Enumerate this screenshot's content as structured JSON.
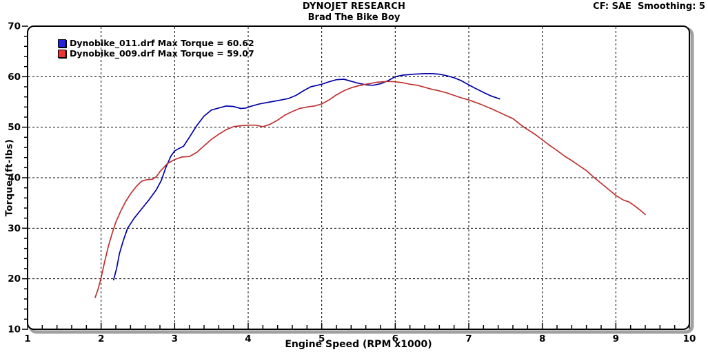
{
  "header": {
    "cf_info": "CF: SAE  Smoothing: 5"
  },
  "chart_data": {
    "type": "line",
    "title": "DYNOJET RESEARCH",
    "subtitle": "Brad The Bike Boy",
    "xlabel": "Engine Speed (RPM x1000)",
    "ylabel": "Torque (ft-lbs)",
    "xlim": [
      1,
      10
    ],
    "ylim": [
      10,
      70
    ],
    "x_major_ticks": [
      1,
      2,
      3,
      4,
      5,
      6,
      7,
      8,
      9,
      10
    ],
    "y_major_ticks": [
      10,
      20,
      30,
      40,
      50,
      60,
      70
    ],
    "x_minor_step": 0.2,
    "y_minor_step": 2,
    "grid": {
      "style": "dashed",
      "color": "#000000",
      "at": "major-ticks-inner"
    },
    "legend_position": "top-left",
    "frame": {
      "border_color": "#000000",
      "shadow_color": "#a0a0a0",
      "background": "#ffffff"
    },
    "series": [
      {
        "name": "Dynobike_011.drf",
        "legend": "Dynobike_011.drf Max Torque = 60.62",
        "max_torque": 60.62,
        "color": "#0000a8",
        "swatch_color": "#2222dd",
        "points": [
          [
            2.17,
            19.8
          ],
          [
            2.21,
            22.0
          ],
          [
            2.25,
            25.0
          ],
          [
            2.3,
            27.5
          ],
          [
            2.36,
            30.0
          ],
          [
            2.45,
            32.0
          ],
          [
            2.55,
            33.8
          ],
          [
            2.65,
            35.6
          ],
          [
            2.75,
            37.6
          ],
          [
            2.82,
            39.5
          ],
          [
            2.88,
            42.0
          ],
          [
            2.95,
            44.3
          ],
          [
            3.0,
            45.3
          ],
          [
            3.06,
            45.8
          ],
          [
            3.12,
            46.2
          ],
          [
            3.2,
            48.0
          ],
          [
            3.3,
            50.3
          ],
          [
            3.4,
            52.2
          ],
          [
            3.5,
            53.4
          ],
          [
            3.6,
            53.8
          ],
          [
            3.7,
            54.2
          ],
          [
            3.8,
            54.1
          ],
          [
            3.9,
            53.7
          ],
          [
            3.97,
            53.8
          ],
          [
            4.05,
            54.2
          ],
          [
            4.15,
            54.6
          ],
          [
            4.3,
            55.0
          ],
          [
            4.45,
            55.4
          ],
          [
            4.55,
            55.7
          ],
          [
            4.65,
            56.3
          ],
          [
            4.75,
            57.2
          ],
          [
            4.85,
            58.0
          ],
          [
            5.0,
            58.5
          ],
          [
            5.1,
            59.0
          ],
          [
            5.2,
            59.4
          ],
          [
            5.3,
            59.5
          ],
          [
            5.4,
            59.1
          ],
          [
            5.5,
            58.7
          ],
          [
            5.6,
            58.4
          ],
          [
            5.7,
            58.3
          ],
          [
            5.8,
            58.6
          ],
          [
            5.9,
            59.2
          ],
          [
            6.0,
            60.0
          ],
          [
            6.1,
            60.3
          ],
          [
            6.25,
            60.5
          ],
          [
            6.4,
            60.6
          ],
          [
            6.5,
            60.6
          ],
          [
            6.6,
            60.5
          ],
          [
            6.7,
            60.2
          ],
          [
            6.8,
            59.8
          ],
          [
            6.9,
            59.2
          ],
          [
            7.0,
            58.4
          ],
          [
            7.1,
            57.6
          ],
          [
            7.2,
            56.9
          ],
          [
            7.3,
            56.2
          ],
          [
            7.42,
            55.6
          ]
        ]
      },
      {
        "name": "Dynobike_009.drf",
        "legend": "Dynobike_009.drf Max Torque = 59.07",
        "max_torque": 59.07,
        "color": "#c03030",
        "swatch_color": "#ee3333",
        "points": [
          [
            1.92,
            16.3
          ],
          [
            1.96,
            18.0
          ],
          [
            2.0,
            20.2
          ],
          [
            2.05,
            23.5
          ],
          [
            2.1,
            26.5
          ],
          [
            2.15,
            29.0
          ],
          [
            2.2,
            31.2
          ],
          [
            2.27,
            33.5
          ],
          [
            2.33,
            35.2
          ],
          [
            2.4,
            36.8
          ],
          [
            2.48,
            38.3
          ],
          [
            2.55,
            39.3
          ],
          [
            2.62,
            39.6
          ],
          [
            2.7,
            39.7
          ],
          [
            2.75,
            40.2
          ],
          [
            2.8,
            41.2
          ],
          [
            2.9,
            42.8
          ],
          [
            3.0,
            43.6
          ],
          [
            3.1,
            44.1
          ],
          [
            3.2,
            44.2
          ],
          [
            3.3,
            45.0
          ],
          [
            3.4,
            46.3
          ],
          [
            3.5,
            47.6
          ],
          [
            3.6,
            48.6
          ],
          [
            3.7,
            49.5
          ],
          [
            3.8,
            50.1
          ],
          [
            3.9,
            50.3
          ],
          [
            4.0,
            50.4
          ],
          [
            4.1,
            50.4
          ],
          [
            4.2,
            50.1
          ],
          [
            4.3,
            50.6
          ],
          [
            4.4,
            51.4
          ],
          [
            4.5,
            52.4
          ],
          [
            4.6,
            53.1
          ],
          [
            4.7,
            53.7
          ],
          [
            4.8,
            54.0
          ],
          [
            4.9,
            54.2
          ],
          [
            5.0,
            54.6
          ],
          [
            5.1,
            55.4
          ],
          [
            5.2,
            56.4
          ],
          [
            5.3,
            57.2
          ],
          [
            5.4,
            57.8
          ],
          [
            5.5,
            58.2
          ],
          [
            5.6,
            58.5
          ],
          [
            5.75,
            58.9
          ],
          [
            5.9,
            59.07
          ],
          [
            6.0,
            59.0
          ],
          [
            6.1,
            58.8
          ],
          [
            6.2,
            58.5
          ],
          [
            6.3,
            58.3
          ],
          [
            6.4,
            57.9
          ],
          [
            6.5,
            57.5
          ],
          [
            6.6,
            57.2
          ],
          [
            6.7,
            56.8
          ],
          [
            6.8,
            56.3
          ],
          [
            6.9,
            55.8
          ],
          [
            7.0,
            55.4
          ],
          [
            7.15,
            54.6
          ],
          [
            7.3,
            53.7
          ],
          [
            7.45,
            52.7
          ],
          [
            7.6,
            51.7
          ],
          [
            7.75,
            50.0
          ],
          [
            7.9,
            48.6
          ],
          [
            8.0,
            47.5
          ],
          [
            8.1,
            46.4
          ],
          [
            8.2,
            45.4
          ],
          [
            8.3,
            44.3
          ],
          [
            8.4,
            43.4
          ],
          [
            8.5,
            42.4
          ],
          [
            8.6,
            41.4
          ],
          [
            8.7,
            40.1
          ],
          [
            8.8,
            38.9
          ],
          [
            8.9,
            37.7
          ],
          [
            9.0,
            36.5
          ],
          [
            9.1,
            35.6
          ],
          [
            9.18,
            35.2
          ],
          [
            9.25,
            34.5
          ],
          [
            9.33,
            33.6
          ],
          [
            9.4,
            32.7
          ]
        ]
      }
    ]
  }
}
